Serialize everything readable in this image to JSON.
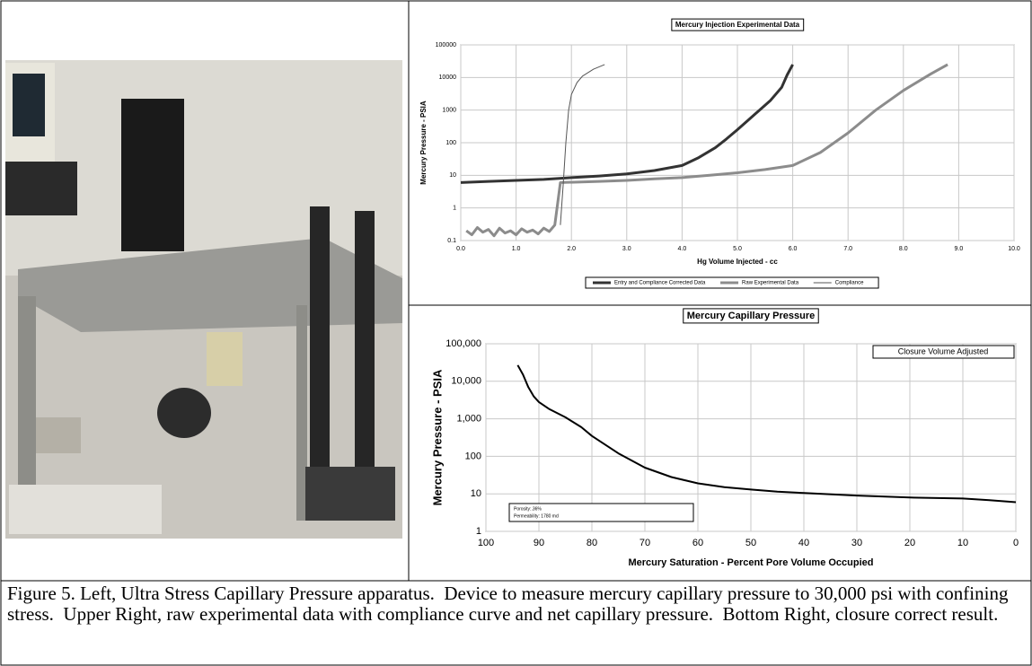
{
  "chart_data": [
    {
      "type": "line",
      "title": "Mercury Injection Experimental Data",
      "x_label": "Hg Volume Injected - cc",
      "y_label": "Mercury Pressure - PSIA",
      "log_y": true,
      "grid": true,
      "legend": "bottom",
      "xlim": [
        0,
        10
      ],
      "xticks": [
        {
          "value": 0,
          "label": "0.0"
        },
        {
          "value": 1,
          "label": "1.0"
        },
        {
          "value": 2,
          "label": "2.0"
        },
        {
          "value": 3,
          "label": "3.0"
        },
        {
          "value": 4,
          "label": "4.0"
        },
        {
          "value": 5,
          "label": "5.0"
        },
        {
          "value": 6,
          "label": "6.0"
        },
        {
          "value": 7,
          "label": "7.0"
        },
        {
          "value": 8,
          "label": "8.0"
        },
        {
          "value": 9,
          "label": "9.0"
        },
        {
          "value": 10,
          "label": "10.0"
        }
      ],
      "ylim": [
        0.1,
        100000
      ],
      "yticks": [
        0.1,
        1,
        10,
        100,
        1000,
        10000,
        100000
      ],
      "series": [
        {
          "name": "Entry and Compliance Corrected Data",
          "color": "#333333",
          "width": 3,
          "x": [
            0,
            0.5,
            1,
            1.5,
            2,
            2.5,
            3,
            3.5,
            4,
            4.3,
            4.6,
            4.8,
            5,
            5.2,
            5.4,
            5.6,
            5.8,
            5.9,
            6.0
          ],
          "values": [
            6,
            6.5,
            7,
            7.5,
            8.5,
            9.5,
            11,
            14,
            20,
            35,
            70,
            130,
            250,
            500,
            1000,
            2000,
            5000,
            12000,
            25000
          ]
        },
        {
          "name": "Raw Experimental Data",
          "color": "#8c8c8c",
          "width": 3,
          "x": [
            0.1,
            0.2,
            0.3,
            0.4,
            0.5,
            0.6,
            0.7,
            0.8,
            0.9,
            1.0,
            1.1,
            1.2,
            1.3,
            1.4,
            1.5,
            1.6,
            1.7,
            1.8,
            2.5,
            3,
            3.5,
            4,
            4.5,
            5,
            5.5,
            6,
            6.5,
            7,
            7.5,
            8,
            8.5,
            8.8
          ],
          "values": [
            0.2,
            0.15,
            0.25,
            0.18,
            0.22,
            0.14,
            0.24,
            0.17,
            0.2,
            0.15,
            0.23,
            0.18,
            0.21,
            0.16,
            0.24,
            0.19,
            0.3,
            6,
            6.5,
            7,
            7.8,
            8.5,
            10,
            12,
            15,
            20,
            50,
            200,
            1000,
            4000,
            13000,
            25000
          ]
        },
        {
          "name": "Compliance",
          "color": "#555555",
          "width": 1,
          "x": [
            1.8,
            1.85,
            1.9,
            1.95,
            2.0,
            2.1,
            2.2,
            2.4,
            2.6
          ],
          "values": [
            0.3,
            5,
            100,
            1000,
            3000,
            7000,
            11000,
            18000,
            25000
          ]
        }
      ]
    },
    {
      "type": "line",
      "title": "Mercury Capillary Pressure",
      "x_label": "Mercury Saturation - Percent Pore Volume Occupied",
      "y_label": "Mercury Pressure - PSIA",
      "log_y": true,
      "grid": true,
      "annotations": [
        "Closure Volume Adjusted",
        "Porosity:.36%",
        "Permeability: 1780 md"
      ],
      "xlim": [
        100,
        0
      ],
      "xticks": [
        100,
        90,
        80,
        70,
        60,
        50,
        40,
        30,
        20,
        10,
        0
      ],
      "ylim": [
        1,
        100000
      ],
      "yticks": [
        1,
        10,
        100,
        {
          "value": 1000,
          "label": "1,000"
        },
        {
          "value": 10000,
          "label": "10,000"
        },
        {
          "value": 100000,
          "label": "100,000"
        }
      ],
      "series": [
        {
          "color": "#000000",
          "width": 2,
          "x": [
            94,
            93,
            92,
            91,
            90,
            88,
            85,
            82,
            80,
            75,
            70,
            65,
            60,
            55,
            50,
            45,
            40,
            30,
            20,
            10,
            5,
            0
          ],
          "values": [
            27000,
            15000,
            7000,
            4000,
            2800,
            1800,
            1100,
            600,
            350,
            120,
            50,
            28,
            19,
            15,
            13,
            11.5,
            10.5,
            9,
            8,
            7.5,
            6.8,
            6
          ]
        }
      ]
    }
  ],
  "caption": "Figure 5. Left, Ultra Stress Capillary Pressure apparatus.  Device to measure mercury capillary pressure to 30,000 psi with confining stress.  Upper Right, raw experimental data with compliance curve and net capillary pressure.  Bottom Right, closure correct result."
}
